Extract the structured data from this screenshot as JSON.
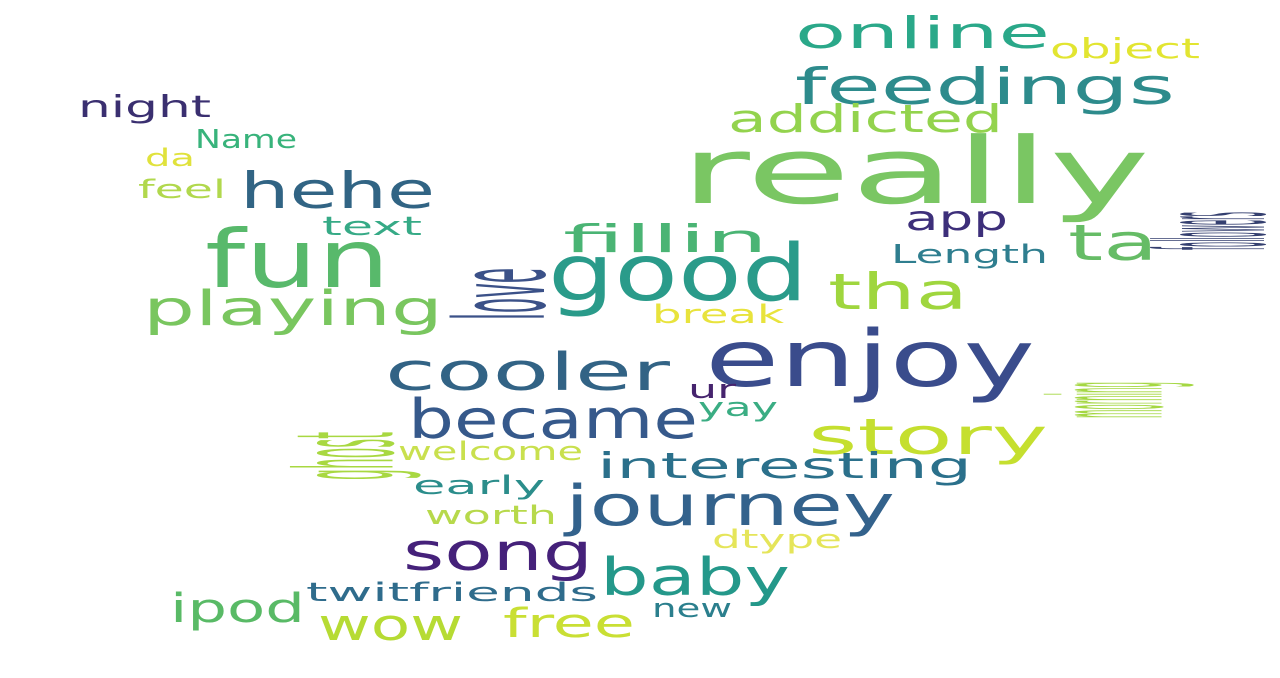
{
  "words": [
    {
      "id": "really",
      "text": "really",
      "color": "#7ac663"
    },
    {
      "id": "enjoy",
      "text": "enjoy",
      "color": "#3a4c8c"
    },
    {
      "id": "good",
      "text": "good",
      "color": "#2a9b8a"
    },
    {
      "id": "fun",
      "text": "fun",
      "color": "#58b96b"
    },
    {
      "id": "feedings",
      "text": "feedings",
      "color": "#2d8b8c"
    },
    {
      "id": "online",
      "text": "online",
      "color": "#2aa889"
    },
    {
      "id": "hehe",
      "text": "hehe",
      "color": "#316484"
    },
    {
      "id": "love",
      "text": "love",
      "color": "#3b5188"
    },
    {
      "id": "cooler",
      "text": "cooler",
      "color": "#326385"
    },
    {
      "id": "became",
      "text": "became",
      "color": "#36598b"
    },
    {
      "id": "journey",
      "text": "journey",
      "color": "#33628c"
    },
    {
      "id": "story",
      "text": "story",
      "color": "#c5df2f"
    },
    {
      "id": "tha",
      "text": "tha",
      "color": "#9fd63e"
    },
    {
      "id": "playing",
      "text": "playing",
      "color": "#79c65f"
    },
    {
      "id": "song",
      "text": "song",
      "color": "#45217a"
    },
    {
      "id": "baby",
      "text": "baby",
      "color": "#24988a"
    },
    {
      "id": "ghost",
      "text": "ghost",
      "color": "#a8d841"
    },
    {
      "id": "ta",
      "text": "ta",
      "color": "#66bc66"
    },
    {
      "id": "addicted",
      "text": "addicted",
      "color": "#93d34d"
    },
    {
      "id": "fillin",
      "text": "fillin",
      "color": "#4ab474"
    },
    {
      "id": "interesting",
      "text": "interesting",
      "color": "#2b708b"
    },
    {
      "id": "wow",
      "text": "wow",
      "color": "#b6db33"
    },
    {
      "id": "free",
      "text": "free",
      "color": "#c9df34"
    },
    {
      "id": "ipod",
      "text": "ipod",
      "color": "#59ba66"
    },
    {
      "id": "app",
      "text": "app",
      "color": "#3d2f7a"
    },
    {
      "id": "followers",
      "text": "followers",
      "color": "#343f6f"
    },
    {
      "id": "morning",
      "text": "morning",
      "color": "#a4d742"
    },
    {
      "id": "night",
      "text": "night",
      "color": "#3a2f70"
    },
    {
      "id": "object",
      "text": "object",
      "color": "#e2e531"
    },
    {
      "id": "name",
      "text": "Name",
      "color": "#38b37b"
    },
    {
      "id": "da",
      "text": "da",
      "color": "#e0e23c"
    },
    {
      "id": "feel",
      "text": "feel",
      "color": "#b1d84d"
    },
    {
      "id": "text",
      "text": "text",
      "color": "#36aa86"
    },
    {
      "id": "length",
      "text": "Length",
      "color": "#2f7e8f"
    },
    {
      "id": "break",
      "text": "break",
      "color": "#e8e33c"
    },
    {
      "id": "ur",
      "text": "ur",
      "color": "#46246e"
    },
    {
      "id": "yay",
      "text": "yay",
      "color": "#3aad83"
    },
    {
      "id": "welcome",
      "text": "welcome",
      "color": "#c9e04e"
    },
    {
      "id": "early",
      "text": "early",
      "color": "#2b8d8b"
    },
    {
      "id": "worth",
      "text": "worth",
      "color": "#b7d94b"
    },
    {
      "id": "dtype",
      "text": "dtype",
      "color": "#e5e55a"
    },
    {
      "id": "twitfriends",
      "text": "twitfriends",
      "color": "#2f6c8c"
    },
    {
      "id": "new",
      "text": "new",
      "color": "#2b7f8d"
    }
  ]
}
